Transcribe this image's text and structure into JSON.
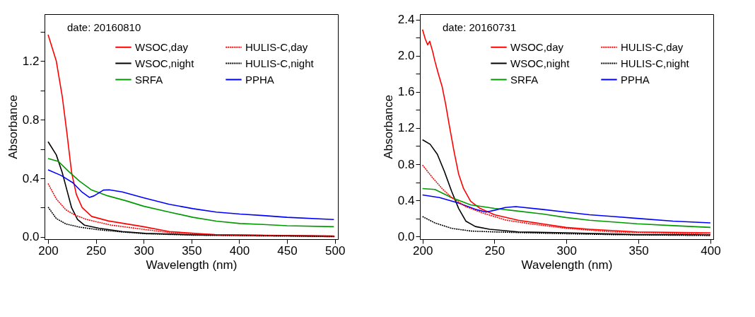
{
  "chart_data": [
    {
      "type": "line",
      "xlabel": "Wavelength (nm)",
      "ylabel": "Absorbance",
      "annotations": [
        "date: 20160810"
      ],
      "legend": "top right",
      "grid": false,
      "marker": "none",
      "xlim": [
        196.3,
        503.2
      ],
      "ylim": [
        -0.015,
        1.52
      ],
      "xticks": [
        200,
        250,
        300,
        350,
        400,
        450,
        500
      ],
      "yticks": [
        {
          "value": 0,
          "label": "0.0"
        },
        {
          "value": 0.2,
          "label": null
        },
        0.4,
        {
          "value": 0.6,
          "label": null
        },
        0.8,
        {
          "value": 1.0,
          "label": null
        },
        1.2,
        {
          "value": 1.4,
          "label": null
        }
      ],
      "series": [
        {
          "name": "WSOC,day",
          "color": "#ff0000",
          "line_style": "solid",
          "x": [
            200,
            208.6,
            214.8,
            219.7,
            224.6,
            229.6,
            235.7,
            245.6,
            262.8,
            299.8,
            326.8,
            376,
            499
          ],
          "values": [
            1.38,
            1.2,
            0.96,
            0.71,
            0.44,
            0.29,
            0.2,
            0.14,
            0.11,
            0.07,
            0.037,
            0.015,
            0.007
          ]
        },
        {
          "name": "WSOC,night",
          "color": "#000000",
          "line_style": "solid",
          "x": [
            200,
            208.6,
            214.8,
            219.7,
            224.6,
            230.8,
            238.2,
            253,
            277.6,
            302,
            351.5,
            499
          ],
          "values": [
            0.65,
            0.56,
            0.44,
            0.32,
            0.2,
            0.12,
            0.08,
            0.06,
            0.037,
            0.025,
            0.015,
            0.005
          ]
        },
        {
          "name": "SRFA",
          "color": "#009900",
          "line_style": "solid",
          "x": [
            200,
            211,
            221,
            233,
            245.6,
            262.8,
            282.5,
            299.8,
            326.8,
            351.5,
            376,
            400.7,
            425,
            450,
            499
          ],
          "values": [
            0.535,
            0.515,
            0.45,
            0.38,
            0.32,
            0.28,
            0.245,
            0.21,
            0.17,
            0.134,
            0.108,
            0.092,
            0.085,
            0.077,
            0.07
          ]
        },
        {
          "name": "HULIS-C,day",
          "color": "#ff0000",
          "line_style": "dotted",
          "x": [
            200,
            208.6,
            218.5,
            228.3,
            240.6,
            265,
            299.8,
            326.8,
            376,
            500
          ],
          "values": [
            0.364,
            0.26,
            0.186,
            0.149,
            0.119,
            0.082,
            0.052,
            0.03,
            0.015,
            0.004
          ]
        },
        {
          "name": "HULIS-C,night",
          "color": "#000000",
          "line_style": "dotted",
          "x": [
            200,
            208.6,
            218.5,
            233,
            253,
            277.6,
            302,
            351.5,
            500
          ],
          "values": [
            0.204,
            0.126,
            0.089,
            0.067,
            0.049,
            0.034,
            0.022,
            0.012,
            0.002
          ]
        },
        {
          "name": "PPHA",
          "color": "#0000ff",
          "line_style": "solid",
          "x": [
            200,
            213.5,
            225.9,
            235.7,
            243.1,
            248,
            257.9,
            264,
            277.6,
            299.8,
            326.8,
            351.5,
            376,
            400.7,
            425,
            450,
            499
          ],
          "values": [
            0.458,
            0.42,
            0.37,
            0.305,
            0.27,
            0.28,
            0.32,
            0.322,
            0.307,
            0.267,
            0.223,
            0.193,
            0.17,
            0.156,
            0.146,
            0.134,
            0.119
          ]
        }
      ]
    },
    {
      "type": "line",
      "xlabel": "Wavelength (nm)",
      "ylabel": "Absorbance",
      "annotations": [
        "date: 20160731"
      ],
      "legend": "top right",
      "grid": false,
      "marker": "none",
      "xlim": [
        198.2,
        402
      ],
      "ylim": [
        -0.03,
        2.46
      ],
      "xticks": [
        200,
        250,
        300,
        350,
        400
      ],
      "yticks": [
        {
          "value": 0,
          "label": "0.0"
        },
        {
          "value": 0.2,
          "label": null
        },
        0.4,
        {
          "value": 0.6,
          "label": null
        },
        0.8,
        {
          "value": 1.0,
          "label": null
        },
        1.2,
        {
          "value": 1.4,
          "label": null
        },
        1.6,
        {
          "value": 1.8,
          "label": null
        },
        {
          "value": 2.0,
          "label": "2.0"
        },
        {
          "value": 2.2,
          "label": null
        },
        2.4
      ],
      "series": [
        {
          "name": "WSOC,day",
          "color": "#ff0000",
          "line_style": "solid",
          "x": [
            200,
            202,
            203.6,
            205,
            207,
            208.6,
            211,
            213.6,
            216,
            218.5,
            221.8,
            225.1,
            228.5,
            233.4,
            240,
            250,
            266.5,
            283,
            299.6,
            316,
            349,
            400
          ],
          "values": [
            2.29,
            2.18,
            2.12,
            2.16,
            2.05,
            1.94,
            1.8,
            1.66,
            1.47,
            1.24,
            0.95,
            0.69,
            0.53,
            0.39,
            0.31,
            0.24,
            0.18,
            0.14,
            0.1,
            0.08,
            0.05,
            0.04
          ]
        },
        {
          "name": "WSOC,night",
          "color": "#000000",
          "line_style": "solid",
          "x": [
            200,
            205.3,
            210.3,
            215.2,
            220.2,
            225.1,
            230.1,
            236.7,
            246.6,
            266.5,
            299.6,
            349,
            400
          ],
          "values": [
            1.07,
            1.02,
            0.91,
            0.72,
            0.5,
            0.31,
            0.17,
            0.11,
            0.08,
            0.05,
            0.04,
            0.02,
            0.02
          ]
        },
        {
          "name": "SRFA",
          "color": "#009900",
          "line_style": "solid",
          "x": [
            200,
            208.6,
            220.2,
            233.4,
            250,
            266.5,
            283,
            299.6,
            316,
            332.7,
            349,
            374,
            400
          ],
          "values": [
            0.53,
            0.52,
            0.43,
            0.35,
            0.31,
            0.28,
            0.25,
            0.21,
            0.18,
            0.16,
            0.14,
            0.12,
            0.1
          ]
        },
        {
          "name": "HULIS-C,day",
          "color": "#ff0000",
          "line_style": "dotted",
          "x": [
            200,
            207,
            213.6,
            220.2,
            230.1,
            241.7,
            258.2,
            274.8,
            299.6,
            332.7,
            365.8,
            400
          ],
          "values": [
            0.79,
            0.65,
            0.53,
            0.43,
            0.33,
            0.26,
            0.18,
            0.14,
            0.09,
            0.05,
            0.04,
            0.02
          ]
        },
        {
          "name": "HULIS-C,night",
          "color": "#000000",
          "line_style": "dotted",
          "x": [
            200,
            208.6,
            220.2,
            233.4,
            250,
            274.8,
            299.6,
            332.7,
            400
          ],
          "values": [
            0.22,
            0.15,
            0.09,
            0.06,
            0.05,
            0.04,
            0.03,
            0.02,
            0.01
          ]
        },
        {
          "name": "PPHA",
          "color": "#0000ff",
          "line_style": "solid",
          "x": [
            200,
            211.9,
            225.1,
            236.7,
            244.2,
            250,
            257.5,
            264.8,
            283,
            299.6,
            316,
            332.7,
            349,
            374,
            400
          ],
          "values": [
            0.46,
            0.43,
            0.37,
            0.3,
            0.27,
            0.29,
            0.32,
            0.33,
            0.3,
            0.27,
            0.24,
            0.22,
            0.2,
            0.17,
            0.15
          ]
        }
      ]
    }
  ]
}
